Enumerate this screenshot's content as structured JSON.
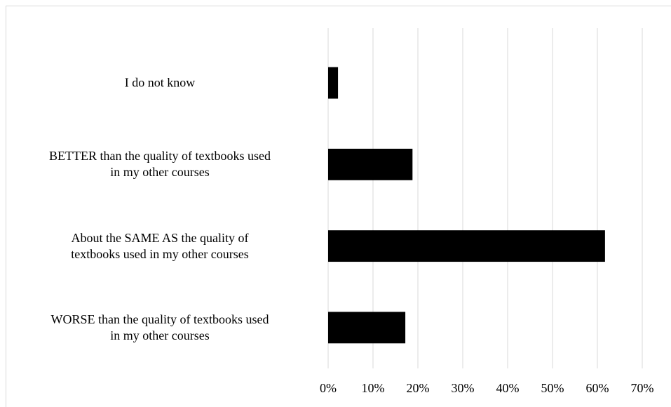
{
  "chart_data": {
    "type": "bar",
    "orientation": "horizontal",
    "categories": [
      "I do not know",
      "BETTER than the quality of textbooks used\nin my other courses",
      "About the SAME AS the quality of\ntextbooks used in my other courses",
      "WORSE than the quality of textbooks used\nin my other courses"
    ],
    "values": [
      2.2,
      18.8,
      61.7,
      17.2
    ],
    "color": "#000000",
    "xlim": [
      0,
      70
    ],
    "xticks": [
      {
        "value": 0,
        "label": "0%"
      },
      {
        "value": 10,
        "label": "10%"
      },
      {
        "value": 20,
        "label": "20%"
      },
      {
        "value": 30,
        "label": "30%"
      },
      {
        "value": 40,
        "label": "40%"
      },
      {
        "value": 50,
        "label": "50%"
      },
      {
        "value": 60,
        "label": "60%"
      },
      {
        "value": 70,
        "label": "70%"
      }
    ],
    "grid": true
  }
}
